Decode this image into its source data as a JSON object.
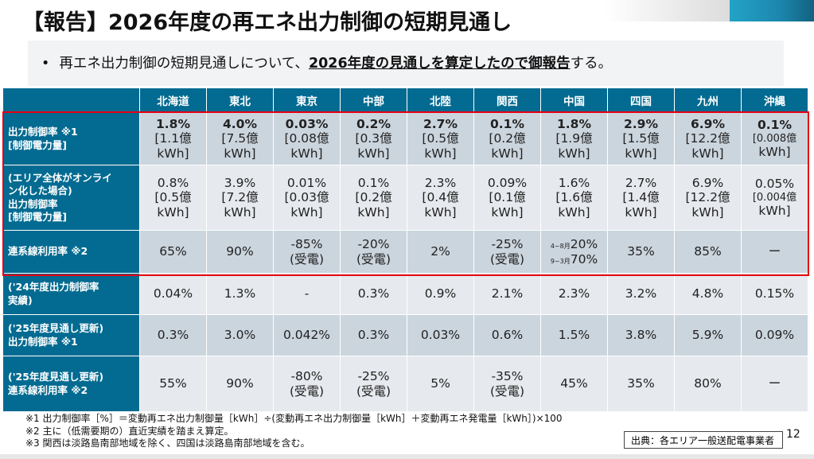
{
  "title": "【報告】2026年度の再エネ出力制御の短期見通し",
  "summary": {
    "bullet": "•",
    "prefix": "再エネ出力制御の短期見通しについて、",
    "emphasis": "2026年度の見通しを算定したので御報告",
    "suffix": "する。"
  },
  "table": {
    "columns": [
      "北海道",
      "東北",
      "東京",
      "中部",
      "北陸",
      "関西",
      "中国",
      "四国",
      "九州",
      "沖縄"
    ],
    "rows": [
      {
        "label_lines": [
          "出力制御率 ※1",
          "[制御電力量]"
        ],
        "cells": [
          {
            "main": "1.8%",
            "sub1": "[1.1億",
            "sub2": "kWh]"
          },
          {
            "main": "4.0%",
            "sub1": "[7.5億",
            "sub2": "kWh]"
          },
          {
            "main": "0.03%",
            "sub1": "[0.08億",
            "sub2": "kWh]"
          },
          {
            "main": "0.2%",
            "sub1": "[0.3億",
            "sub2": "kWh]"
          },
          {
            "main": "2.7%",
            "sub1": "[0.5億",
            "sub2": "kWh]"
          },
          {
            "main": "0.1%",
            "sub1": "[0.2億",
            "sub2": "kWh]"
          },
          {
            "main": "1.8%",
            "sub1": "[1.9億",
            "sub2": "kWh]"
          },
          {
            "main": "2.9%",
            "sub1": "[1.5億",
            "sub2": "kWh]"
          },
          {
            "main": "6.9%",
            "sub1": "[12.2億",
            "sub2": "kWh]"
          },
          {
            "main": "0.1%",
            "sub1": "[0.008億",
            "sub2": "kWh]"
          }
        ]
      },
      {
        "label_lines": [
          "(エリア全体がオンライ",
          "ン化した場合)",
          "出力制御率",
          "[制御電力量]"
        ],
        "cells": [
          {
            "main": "0.8%",
            "sub1": "[0.5億",
            "sub2": "kWh]"
          },
          {
            "main": "3.9%",
            "sub1": "[7.2億",
            "sub2": "kWh]"
          },
          {
            "main": "0.01%",
            "sub1": "[0.03億",
            "sub2": "kWh]"
          },
          {
            "main": "0.1%",
            "sub1": "[0.2億",
            "sub2": "kWh]"
          },
          {
            "main": "2.3%",
            "sub1": "[0.4億",
            "sub2": "kWh]"
          },
          {
            "main": "0.09%",
            "sub1": "[0.1億",
            "sub2": "kWh]"
          },
          {
            "main": "1.6%",
            "sub1": "[1.6億",
            "sub2": "kWh]"
          },
          {
            "main": "2.7%",
            "sub1": "[1.4億",
            "sub2": "kWh]"
          },
          {
            "main": "6.9%",
            "sub1": "[12.2億",
            "sub2": "kWh]"
          },
          {
            "main": "0.05%",
            "sub1": "[0.004億",
            "sub2": "kWh]"
          }
        ]
      },
      {
        "label_lines": [
          "連系線利用率 ※2"
        ],
        "cells": [
          {
            "main": "65%"
          },
          {
            "main": "90%"
          },
          {
            "main": "-85%",
            "sub1": "(受電)"
          },
          {
            "main": "-20%",
            "sub1": "(受電)"
          },
          {
            "main": "2%"
          },
          {
            "main": "-25%",
            "sub1": "(受電)"
          },
          {
            "period1": "4~8月",
            "value1": "20%",
            "period2": "9~3月",
            "value2": "70%"
          },
          {
            "main": "35%"
          },
          {
            "main": "85%"
          },
          {
            "main": "ー"
          }
        ]
      },
      {
        "label_lines": [
          "('24年度出力制御率",
          "実績)"
        ],
        "cells": [
          {
            "main": "0.04%"
          },
          {
            "main": "1.3%"
          },
          {
            "main": "-"
          },
          {
            "main": "0.3%"
          },
          {
            "main": "0.9%"
          },
          {
            "main": "2.1%"
          },
          {
            "main": "2.3%"
          },
          {
            "main": "3.2%"
          },
          {
            "main": "4.8%"
          },
          {
            "main": "0.15%"
          }
        ]
      },
      {
        "label_lines": [
          "('25年度見通し更新)",
          "出力制御率 ※1"
        ],
        "cells": [
          {
            "main": "0.3%"
          },
          {
            "main": "3.0%"
          },
          {
            "main": "0.042%"
          },
          {
            "main": "0.3%"
          },
          {
            "main": "0.03%"
          },
          {
            "main": "0.6%"
          },
          {
            "main": "1.5%"
          },
          {
            "main": "3.8%"
          },
          {
            "main": "5.9%"
          },
          {
            "main": "0.09%"
          }
        ]
      },
      {
        "label_lines": [
          "('25年度見通し更新)",
          "連系線利用率 ※2"
        ],
        "cells": [
          {
            "main": "55%"
          },
          {
            "main": "90%"
          },
          {
            "main": "-80%",
            "sub1": "(受電)"
          },
          {
            "main": "-25%",
            "sub1": "(受電)"
          },
          {
            "main": "5%"
          },
          {
            "main": "-35%",
            "sub1": "(受電)"
          },
          {
            "main": "45%"
          },
          {
            "main": "35%"
          },
          {
            "main": "80%"
          },
          {
            "main": "ー"
          }
        ]
      }
    ]
  },
  "notes": [
    "※1 出力制御率［%］＝変動再エネ出力制御量［kWh］÷(変動再エネ出力制御量［kWh］＋変動再エネ発電量［kWh］)×100",
    "※2 主に（低需要期の）直近実績を踏まえ算定。",
    "※3 関西は淡路島南部地域を除く、四国は淡路島南部地域を含む。"
  ],
  "source": "出典：各エリア一般送配電事業者",
  "page_number": "12",
  "colors": {
    "header_blue": "#036b91",
    "highlight_red": "#e60012",
    "cell_dark": "#cbd5de",
    "cell_light": "#e6e9ed"
  }
}
